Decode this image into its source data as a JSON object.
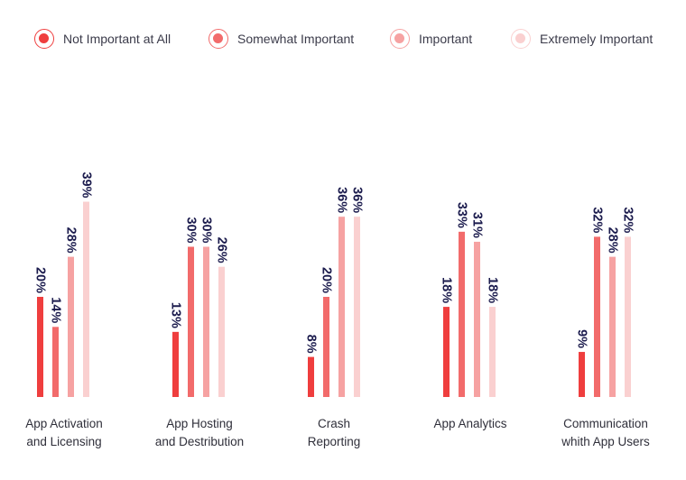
{
  "chart_data": {
    "type": "bar",
    "categories": [
      [
        "App Activation",
        "and Licensing"
      ],
      [
        "App Hosting",
        "and Destribution"
      ],
      [
        "Crash",
        "Reporting"
      ],
      [
        "App Analytics"
      ],
      [
        "Communication",
        "whith App Users"
      ]
    ],
    "series": [
      {
        "name": "Not Important at All",
        "color": "#ef3e3e",
        "values": [
          20,
          13,
          8,
          18,
          9
        ]
      },
      {
        "name": "Somewhat Important",
        "color": "#f26b6b",
        "values": [
          14,
          30,
          20,
          33,
          32
        ]
      },
      {
        "name": "Important",
        "color": "#f6a2a2",
        "values": [
          28,
          30,
          36,
          31,
          28
        ]
      },
      {
        "name": "Extremely Important",
        "color": "#fad0d0",
        "values": [
          39,
          26,
          36,
          18,
          32
        ]
      }
    ],
    "value_suffix": "%",
    "ylim": [
      0,
      40
    ],
    "legend_position": "top",
    "grid": false
  }
}
